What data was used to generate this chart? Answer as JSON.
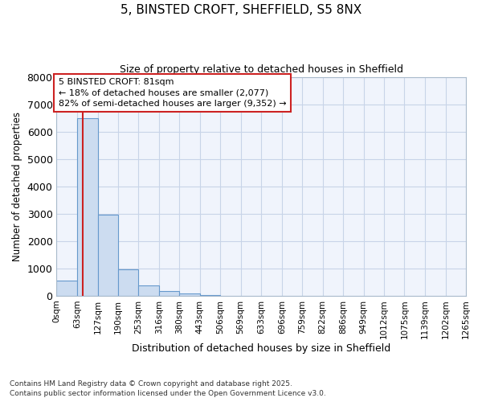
{
  "title1": "5, BINSTED CROFT, SHEFFIELD, S5 8NX",
  "title2": "Size of property relative to detached houses in Sheffield",
  "xlabel": "Distribution of detached houses by size in Sheffield",
  "ylabel": "Number of detached properties",
  "bin_edges": [
    0,
    63,
    127,
    190,
    253,
    316,
    380,
    443,
    506,
    569,
    633,
    696,
    759,
    822,
    886,
    949,
    1012,
    1075,
    1139,
    1202,
    1265
  ],
  "bar_heights": [
    560,
    6480,
    2970,
    970,
    370,
    165,
    80,
    35,
    0,
    0,
    0,
    0,
    0,
    0,
    0,
    0,
    0,
    0,
    0,
    0
  ],
  "bar_color": "#ccdcf0",
  "bar_edge_color": "#6699cc",
  "grid_color": "#c8d4e8",
  "property_size": 81,
  "annotation_title": "5 BINSTED CROFT: 81sqm",
  "annotation_line1": "← 18% of detached houses are smaller (2,077)",
  "annotation_line2": "82% of semi-detached houses are larger (9,352) →",
  "annotation_box_color": "#cc2222",
  "vline_color": "#cc2222",
  "ylim": [
    0,
    8000
  ],
  "yticks": [
    0,
    1000,
    2000,
    3000,
    4000,
    5000,
    6000,
    7000,
    8000
  ],
  "footnote1": "Contains HM Land Registry data © Crown copyright and database right 2025.",
  "footnote2": "Contains public sector information licensed under the Open Government Licence v3.0.",
  "bg_color": "#ffffff",
  "plot_bg_color": "#f0f4fc"
}
